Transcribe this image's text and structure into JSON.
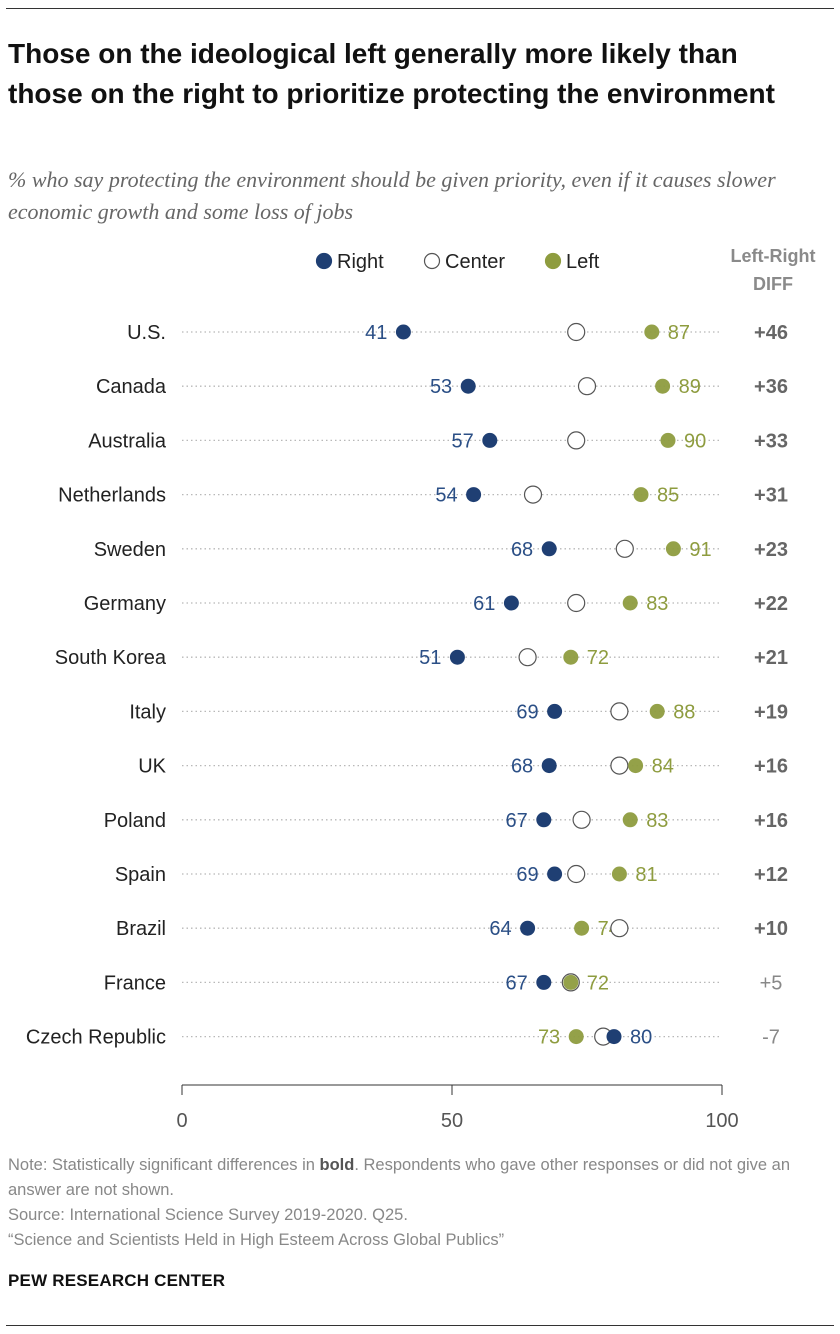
{
  "header": {
    "title": "Those on the ideological left generally more likely than those on the right to prioritize protecting the environment",
    "subtitle": "% who say protecting the environment should be given priority, even if it causes slower economic growth and some loss of jobs"
  },
  "chart_data": {
    "type": "dot",
    "xlim": [
      0,
      100
    ],
    "x_ticks": [
      "0",
      "50",
      "100"
    ],
    "grid": false,
    "legend_placement": "top",
    "legend": [
      {
        "name": "Right",
        "color": "#1f3f73"
      },
      {
        "name": "Center",
        "color": "#ffffff"
      },
      {
        "name": "Left",
        "color": "#8e9c3f"
      }
    ],
    "diff_header": [
      "Left-Right",
      "DIFF"
    ],
    "rows": [
      {
        "country": "U.S.",
        "right": 41,
        "center": 73,
        "left": 87,
        "diff": "+46",
        "significant": true
      },
      {
        "country": "Canada",
        "right": 53,
        "center": 75,
        "left": 89,
        "diff": "+36",
        "significant": true
      },
      {
        "country": "Australia",
        "right": 57,
        "center": 73,
        "left": 90,
        "diff": "+33",
        "significant": true
      },
      {
        "country": "Netherlands",
        "right": 54,
        "center": 65,
        "left": 85,
        "diff": "+31",
        "significant": true
      },
      {
        "country": "Sweden",
        "right": 68,
        "center": 82,
        "left": 91,
        "diff": "+23",
        "significant": true
      },
      {
        "country": "Germany",
        "right": 61,
        "center": 73,
        "left": 83,
        "diff": "+22",
        "significant": true
      },
      {
        "country": "South Korea",
        "right": 51,
        "center": 64,
        "left": 72,
        "diff": "+21",
        "significant": true
      },
      {
        "country": "Italy",
        "right": 69,
        "center": 81,
        "left": 88,
        "diff": "+19",
        "significant": true
      },
      {
        "country": "UK",
        "right": 68,
        "center": 81,
        "left": 84,
        "diff": "+16",
        "significant": true
      },
      {
        "country": "Poland",
        "right": 67,
        "center": 74,
        "left": 83,
        "diff": "+16",
        "significant": true
      },
      {
        "country": "Spain",
        "right": 69,
        "center": 73,
        "left": 81,
        "diff": "+12",
        "significant": true
      },
      {
        "country": "Brazil",
        "right": 64,
        "center": 81,
        "left": 74,
        "diff": "+10",
        "significant": true
      },
      {
        "country": "France",
        "right": 67,
        "center": 72,
        "left": 72,
        "diff": "+5",
        "significant": false
      },
      {
        "country": "Czech Republic",
        "right": 80,
        "center": 78,
        "left": 73,
        "diff": "-7",
        "significant": false
      }
    ]
  },
  "footer": {
    "note_prefix": "Note: Statistically significant differences in ",
    "note_bold": "bold",
    "note_suffix": ". Respondents who gave other responses or did not give an answer are not shown.",
    "source": "Source: International Science Survey 2019-2020. Q25.",
    "report": "“Science and Scientists Held in High Esteem Across Global Publics”",
    "brand": "PEW RESEARCH CENTER"
  }
}
